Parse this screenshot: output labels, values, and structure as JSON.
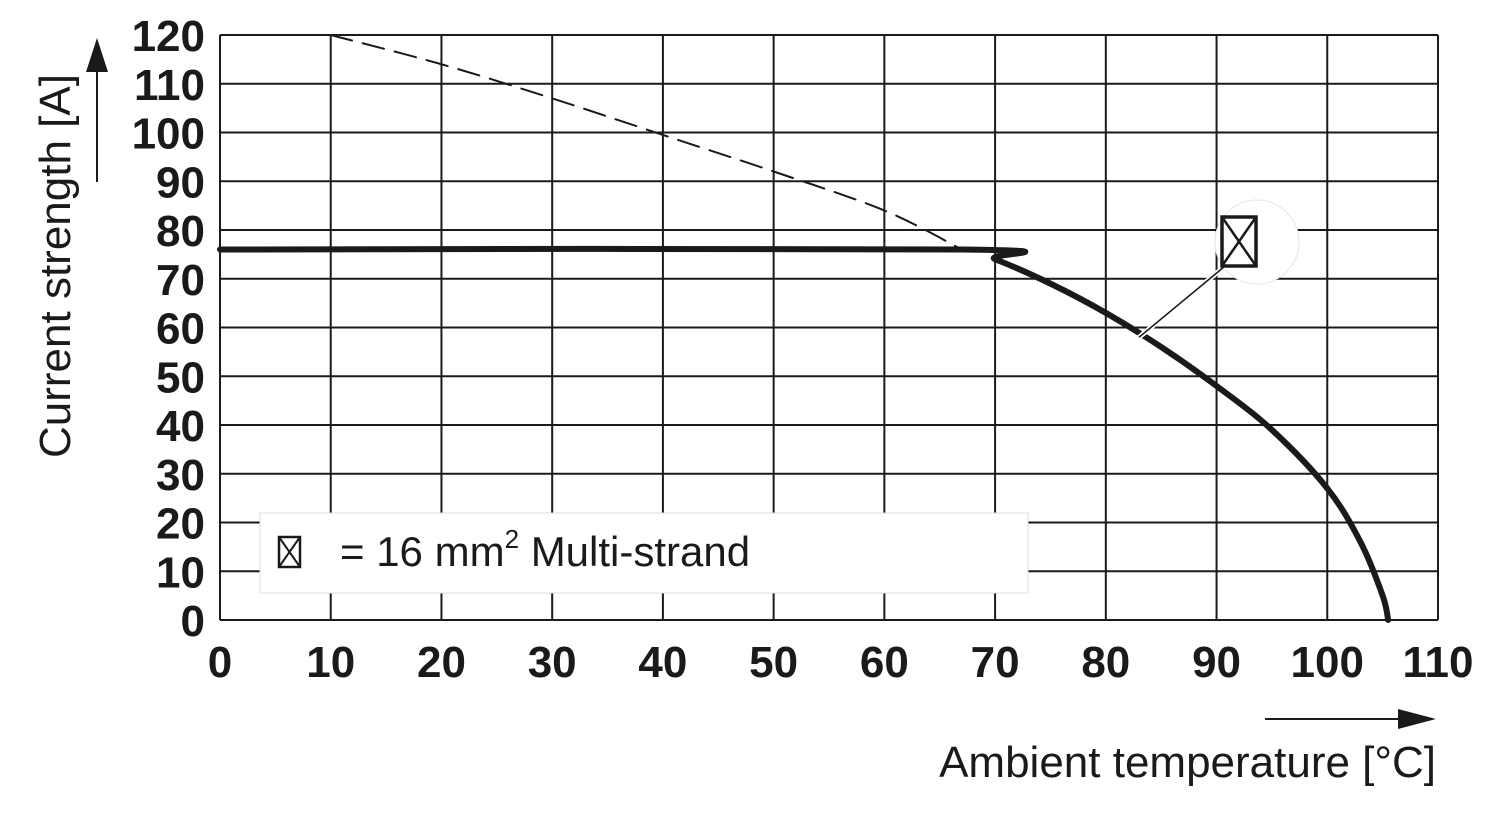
{
  "chart_data": {
    "type": "line",
    "xlabel": "Ambient temperature [°C]",
    "ylabel": "Current strength [A]",
    "xlim": [
      0,
      110
    ],
    "ylim": [
      0,
      120
    ],
    "x_ticks": [
      0,
      10,
      20,
      30,
      40,
      50,
      60,
      70,
      80,
      90,
      100,
      110
    ],
    "y_ticks": [
      0,
      10,
      20,
      30,
      40,
      50,
      60,
      70,
      80,
      90,
      100,
      110,
      120
    ],
    "grid": true,
    "legend": {
      "placement": "bottom-left",
      "symbol": "cross-box-icon",
      "prefix": "= 16 mm",
      "superscript": "2",
      "suffix": " Multi-strand"
    },
    "series": [
      {
        "style": "solid-bold",
        "x": [
          0,
          67,
          70,
          75,
          80,
          85,
          90,
          95,
          100,
          103,
          105,
          105.5
        ],
        "y": [
          76,
          76,
          74,
          69,
          63,
          56,
          48,
          39,
          27,
          16,
          5,
          0
        ]
      },
      {
        "style": "dashed-thin",
        "x": [
          10,
          20,
          30,
          40,
          50,
          60,
          67
        ],
        "y": [
          120,
          114,
          107,
          99.5,
          92,
          84,
          76
        ]
      }
    ],
    "series_marker": {
      "icon": "cross-box-icon",
      "at_x": 83,
      "at_y": 58
    }
  }
}
